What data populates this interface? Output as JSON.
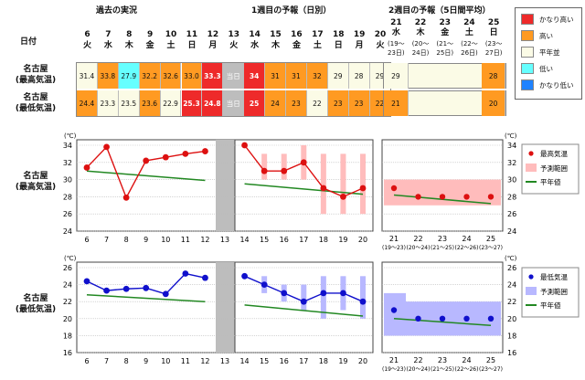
{
  "colors": {
    "very_high": "#ee2a2a",
    "high": "#ff9a22",
    "normal": "#fbfbe6",
    "low": "#66ffff",
    "very_low": "#1e82ff",
    "current": "#bdbdbd",
    "red": "#dd1010",
    "blue": "#1010cc",
    "normal_line": "#228822",
    "range_red": "#ffbcbc",
    "range_blue": "#b8b8ff"
  },
  "sections": {
    "past": "過去の実況",
    "week1": "1週目の予報（日別）",
    "week2": "2週目の予報（5日間平均）"
  },
  "date_label": "日付",
  "days1": [
    {
      "d": "6",
      "w": "火"
    },
    {
      "d": "7",
      "w": "水"
    },
    {
      "d": "8",
      "w": "木"
    },
    {
      "d": "9",
      "w": "金"
    },
    {
      "d": "10",
      "w": "土"
    },
    {
      "d": "11",
      "w": "日"
    },
    {
      "d": "12",
      "w": "月"
    },
    {
      "d": "13",
      "w": "火"
    },
    {
      "d": "14",
      "w": "水"
    },
    {
      "d": "15",
      "w": "木"
    },
    {
      "d": "16",
      "w": "金"
    },
    {
      "d": "17",
      "w": "土"
    },
    {
      "d": "18",
      "w": "日"
    },
    {
      "d": "19",
      "w": "月"
    },
    {
      "d": "20",
      "w": "火"
    }
  ],
  "days2": [
    {
      "d": "21",
      "w": "水",
      "r1": "(19〜",
      "r2": "23日)"
    },
    {
      "d": "22",
      "w": "木",
      "r1": "(20〜",
      "r2": "24日)"
    },
    {
      "d": "23",
      "w": "金",
      "r1": "(21〜",
      "r2": "25日)"
    },
    {
      "d": "24",
      "w": "土",
      "r1": "(22〜",
      "r2": "26日)"
    },
    {
      "d": "25",
      "w": "日",
      "r1": "(23〜",
      "r2": "27日)"
    }
  ],
  "rows": {
    "max_label": "名古屋\n(最高気温)",
    "min_label": "名古屋\n(最低気温)",
    "max_cells": [
      {
        "v": "31.4",
        "c": "normal"
      },
      {
        "v": "33.8",
        "c": "high"
      },
      {
        "v": "27.9",
        "c": "low"
      },
      {
        "v": "32.2",
        "c": "high"
      },
      {
        "v": "32.6",
        "c": "high"
      },
      {
        "v": "33.0",
        "c": "high"
      },
      {
        "v": "33.3",
        "c": "very_high"
      },
      {
        "v": "当日",
        "c": "current"
      },
      {
        "v": "34",
        "c": "very_high"
      },
      {
        "v": "31",
        "c": "high"
      },
      {
        "v": "31",
        "c": "high"
      },
      {
        "v": "32",
        "c": "high"
      },
      {
        "v": "29",
        "c": "normal"
      },
      {
        "v": "28",
        "c": "normal"
      },
      {
        "v": "29",
        "c": "normal"
      }
    ],
    "min_cells": [
      {
        "v": "24.4",
        "c": "high"
      },
      {
        "v": "23.3",
        "c": "normal"
      },
      {
        "v": "23.5",
        "c": "normal"
      },
      {
        "v": "23.6",
        "c": "high"
      },
      {
        "v": "22.9",
        "c": "normal"
      },
      {
        "v": "25.3",
        "c": "very_high"
      },
      {
        "v": "24.8",
        "c": "very_high"
      },
      {
        "v": "当日",
        "c": "current"
      },
      {
        "v": "25",
        "c": "very_high"
      },
      {
        "v": "24",
        "c": "high"
      },
      {
        "v": "23",
        "c": "high"
      },
      {
        "v": "22",
        "c": "normal"
      },
      {
        "v": "23",
        "c": "high"
      },
      {
        "v": "23",
        "c": "high"
      },
      {
        "v": "22",
        "c": "high"
      }
    ],
    "max_w2": [
      {
        "v": "29",
        "c": "normal"
      },
      {
        "v": "28",
        "c": "high"
      }
    ],
    "min_w2": [
      {
        "v": "21",
        "c": "high"
      },
      {
        "v": "20",
        "c": "high"
      }
    ]
  },
  "legend_top": [
    "かなり高い",
    "高い",
    "平年並",
    "低い",
    "かなり低い"
  ],
  "legend_max": [
    "最高気温",
    "予測範囲",
    "平年値"
  ],
  "legend_min": [
    "最低気温",
    "予測範囲",
    "平年値"
  ],
  "chart_label_max": "名古屋\n(最高気温)",
  "chart_label_min": "名古屋\n(最低気温)",
  "unit": "(℃)",
  "chart_data": [
    {
      "type": "line",
      "title": "名古屋 最高気温",
      "ylim": [
        24,
        34
      ],
      "yticks": [
        24,
        26,
        28,
        30,
        32,
        34
      ],
      "x_days": [
        "6",
        "7",
        "8",
        "9",
        "10",
        "11",
        "12",
        "13",
        "14",
        "15",
        "16",
        "17",
        "18",
        "19",
        "20"
      ],
      "observed": [
        31.4,
        33.8,
        27.9,
        32.2,
        32.6,
        33.0,
        33.3
      ],
      "forecast": [
        34,
        31,
        31,
        32,
        29,
        28,
        29
      ],
      "forecast_range": [
        [
          34,
          34
        ],
        [
          30,
          33
        ],
        [
          30,
          33
        ],
        [
          30,
          34
        ],
        [
          26,
          33
        ],
        [
          26,
          33
        ],
        [
          26,
          33
        ]
      ],
      "normal_past": [
        31.0,
        29.9
      ],
      "normal_week1": [
        29.5,
        28.3
      ],
      "w2_labels": [
        "21",
        "22",
        "23",
        "24",
        "25"
      ],
      "w2_ranges": [
        "(19〜23)",
        "(20〜24)",
        "(21〜25)",
        "(22〜26)",
        "(23〜27)"
      ],
      "w2_values": [
        29,
        28,
        28,
        28,
        28
      ],
      "w2_range": [
        27,
        30
      ],
      "w2_normal": [
        28.2,
        27.2
      ]
    },
    {
      "type": "line",
      "title": "名古屋 最低気温",
      "ylim": [
        16,
        26
      ],
      "yticks": [
        16,
        18,
        20,
        22,
        24,
        26
      ],
      "x_days": [
        "6",
        "7",
        "8",
        "9",
        "10",
        "11",
        "12",
        "13",
        "14",
        "15",
        "16",
        "17",
        "18",
        "19",
        "20"
      ],
      "observed": [
        24.4,
        23.3,
        23.5,
        23.6,
        22.9,
        25.3,
        24.8
      ],
      "forecast": [
        25,
        24,
        23,
        22,
        23,
        23,
        22
      ],
      "forecast_range": [
        [
          25,
          25
        ],
        [
          23,
          25
        ],
        [
          22,
          24
        ],
        [
          21,
          24
        ],
        [
          20,
          25
        ],
        [
          21,
          25
        ],
        [
          20,
          25
        ]
      ],
      "normal_past": [
        22.8,
        22.0
      ],
      "normal_week1": [
        21.6,
        20.3
      ],
      "w2_labels": [
        "21",
        "22",
        "23",
        "24",
        "25"
      ],
      "w2_ranges": [
        "(19〜23)",
        "(20〜24)",
        "(21〜25)",
        "(22〜26)",
        "(23〜27)"
      ],
      "w2_values": [
        21,
        20,
        20,
        20,
        20
      ],
      "w2_range": [
        18,
        22
      ],
      "w2_range_first": [
        18,
        23
      ],
      "w2_normal": [
        20.0,
        19.2
      ]
    }
  ]
}
